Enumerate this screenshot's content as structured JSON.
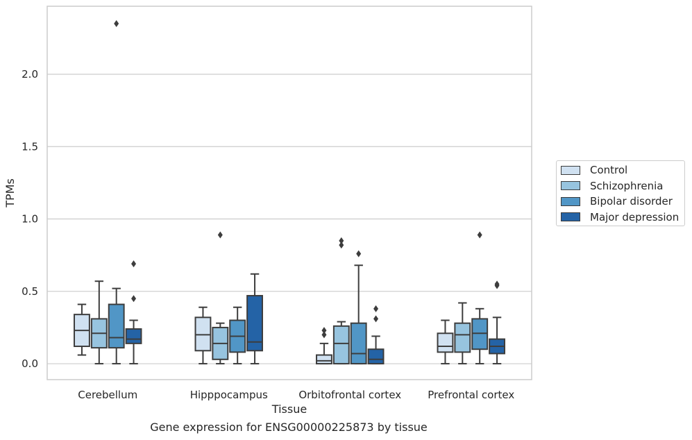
{
  "caption": "Gene expression for ENSG00000225873 by tissue",
  "chart_data": {
    "type": "box",
    "xlabel": "Tissue",
    "ylabel": "TPMs",
    "ylim": [
      -0.11,
      2.47
    ],
    "yticks": [
      "0.0",
      "0.5",
      "1.0",
      "1.5",
      "2.0"
    ],
    "grid": true,
    "legend_position": "right",
    "categories": [
      "Cerebellum",
      "Hipppocampus",
      "Orbitofrontal cortex",
      "Prefrontal cortex"
    ],
    "series": [
      {
        "name": "Control",
        "color": "#d0e1f1",
        "boxes": [
          {
            "whisker_low": 0.06,
            "q1": 0.12,
            "median": 0.23,
            "q3": 0.34,
            "whisker_high": 0.41,
            "outliers": []
          },
          {
            "whisker_low": 0.0,
            "q1": 0.09,
            "median": 0.2,
            "q3": 0.32,
            "whisker_high": 0.39,
            "outliers": []
          },
          {
            "whisker_low": 0.0,
            "q1": 0.0,
            "median": 0.02,
            "q3": 0.06,
            "whisker_high": 0.14,
            "outliers": [
              0.2,
              0.23
            ]
          },
          {
            "whisker_low": 0.0,
            "q1": 0.08,
            "median": 0.12,
            "q3": 0.21,
            "whisker_high": 0.3,
            "outliers": []
          }
        ]
      },
      {
        "name": "Schizophrenia",
        "color": "#97c4df",
        "boxes": [
          {
            "whisker_low": 0.0,
            "q1": 0.11,
            "median": 0.21,
            "q3": 0.31,
            "whisker_high": 0.57,
            "outliers": []
          },
          {
            "whisker_low": 0.0,
            "q1": 0.03,
            "median": 0.14,
            "q3": 0.25,
            "whisker_high": 0.28,
            "outliers": [
              0.89
            ]
          },
          {
            "whisker_low": 0.0,
            "q1": 0.0,
            "median": 0.14,
            "q3": 0.26,
            "whisker_high": 0.29,
            "outliers": [
              0.82,
              0.85
            ]
          },
          {
            "whisker_low": 0.0,
            "q1": 0.08,
            "median": 0.2,
            "q3": 0.28,
            "whisker_high": 0.42,
            "outliers": []
          }
        ]
      },
      {
        "name": "Bipolar disorder",
        "color": "#5196c6",
        "boxes": [
          {
            "whisker_low": 0.0,
            "q1": 0.11,
            "median": 0.18,
            "q3": 0.41,
            "whisker_high": 0.52,
            "outliers": [
              2.35
            ]
          },
          {
            "whisker_low": 0.0,
            "q1": 0.08,
            "median": 0.19,
            "q3": 0.3,
            "whisker_high": 0.39,
            "outliers": []
          },
          {
            "whisker_low": 0.0,
            "q1": 0.0,
            "median": 0.07,
            "q3": 0.28,
            "whisker_high": 0.68,
            "outliers": [
              0.76
            ]
          },
          {
            "whisker_low": 0.0,
            "q1": 0.1,
            "median": 0.21,
            "q3": 0.31,
            "whisker_high": 0.38,
            "outliers": [
              0.89
            ]
          }
        ]
      },
      {
        "name": "Major depression",
        "color": "#2463a6",
        "boxes": [
          {
            "whisker_low": 0.0,
            "q1": 0.14,
            "median": 0.17,
            "q3": 0.24,
            "whisker_high": 0.3,
            "outliers": [
              0.45,
              0.69
            ]
          },
          {
            "whisker_low": 0.0,
            "q1": 0.09,
            "median": 0.15,
            "q3": 0.47,
            "whisker_high": 0.62,
            "outliers": []
          },
          {
            "whisker_low": 0.0,
            "q1": 0.0,
            "median": 0.03,
            "q3": 0.1,
            "whisker_high": 0.19,
            "outliers": [
              0.31,
              0.38
            ]
          },
          {
            "whisker_low": 0.0,
            "q1": 0.07,
            "median": 0.12,
            "q3": 0.17,
            "whisker_high": 0.32,
            "outliers": [
              0.54,
              0.55
            ]
          }
        ]
      }
    ]
  }
}
